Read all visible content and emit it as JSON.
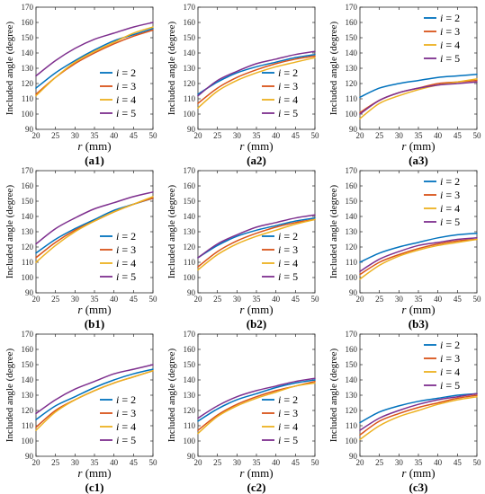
{
  "colors": {
    "s2": "#0072BD",
    "s3": "#D95319",
    "s4": "#EDB120",
    "s5": "#7E2F8E",
    "axis": "#262626"
  },
  "chart_data": [
    {
      "type": "line",
      "panel_label": "a1",
      "xlabel_var": "r",
      "xlabel_unit": " (mm)",
      "ylabel": "Included angle (degree)",
      "xlim": [
        20,
        50
      ],
      "ylim": [
        90,
        170
      ],
      "x_ticks": [
        "20",
        "25",
        "30",
        "35",
        "40",
        "45",
        "50"
      ],
      "y_ticks": [
        "90",
        "100",
        "110",
        "120",
        "130",
        "140",
        "150",
        "160",
        "170"
      ],
      "legend_position": "lower-right",
      "grid": false,
      "x": [
        20,
        25,
        30,
        35,
        40,
        45,
        50
      ],
      "series": [
        {
          "name_var": "i",
          "name_value": " = 2",
          "values": [
            117,
            127,
            135,
            142,
            148,
            152,
            156
          ]
        },
        {
          "name_var": "i",
          "name_value": " = 3",
          "values": [
            113,
            124,
            133,
            140,
            146,
            151,
            155
          ]
        },
        {
          "name_var": "i",
          "name_value": " = 4",
          "values": [
            112,
            124,
            134,
            141,
            147,
            153,
            157
          ]
        },
        {
          "name_var": "i",
          "name_value": " = 5",
          "values": [
            125,
            135,
            143,
            149,
            153,
            157,
            160
          ]
        }
      ]
    },
    {
      "type": "line",
      "panel_label": "a2",
      "xlabel_var": "r",
      "xlabel_unit": " (mm)",
      "ylabel": "Included angle (degree)",
      "xlim": [
        20,
        50
      ],
      "ylim": [
        90,
        170
      ],
      "x_ticks": [
        "20",
        "25",
        "30",
        "35",
        "40",
        "45",
        "50"
      ],
      "y_ticks": [
        "90",
        "100",
        "110",
        "120",
        "130",
        "140",
        "150",
        "160",
        "170"
      ],
      "legend_position": "lower-right",
      "grid": false,
      "x": [
        20,
        25,
        30,
        35,
        40,
        45,
        50
      ],
      "series": [
        {
          "name_var": "i",
          "name_value": " = 2",
          "values": [
            113,
            121,
            127,
            131,
            134,
            137,
            139
          ]
        },
        {
          "name_var": "i",
          "name_value": " = 3",
          "values": [
            107,
            117,
            124,
            129,
            133,
            136,
            138
          ]
        },
        {
          "name_var": "i",
          "name_value": " = 4",
          "values": [
            104,
            115,
            122,
            127,
            131,
            134,
            137
          ]
        },
        {
          "name_var": "i",
          "name_value": " = 5",
          "values": [
            112,
            122,
            128,
            133,
            136,
            139,
            141
          ]
        }
      ]
    },
    {
      "type": "line",
      "panel_label": "a3",
      "xlabel_var": "r",
      "xlabel_unit": " (mm)",
      "ylabel": "Included angle (degree)",
      "xlim": [
        20,
        50
      ],
      "ylim": [
        90,
        170
      ],
      "x_ticks": [
        "20",
        "25",
        "30",
        "35",
        "40",
        "45",
        "50"
      ],
      "y_ticks": [
        "90",
        "100",
        "110",
        "120",
        "130",
        "140",
        "150",
        "160",
        "170"
      ],
      "legend_position": "top-right",
      "grid": false,
      "x": [
        20,
        25,
        30,
        35,
        40,
        45,
        50
      ],
      "series": [
        {
          "name_var": "i",
          "name_value": " = 2",
          "values": [
            111,
            117,
            120,
            122,
            124,
            125,
            126
          ]
        },
        {
          "name_var": "i",
          "name_value": " = 3",
          "values": [
            101,
            109,
            114,
            117,
            120,
            121,
            122
          ]
        },
        {
          "name_var": "i",
          "name_value": " = 4",
          "values": [
            97,
            107,
            112,
            116,
            119,
            121,
            123
          ]
        },
        {
          "name_var": "i",
          "name_value": " = 5",
          "values": [
            100,
            109,
            114,
            117,
            119,
            120,
            121
          ]
        }
      ]
    },
    {
      "type": "line",
      "panel_label": "b1",
      "xlabel_var": "r",
      "xlabel_unit": " (mm)",
      "ylabel": "Included angle (degree)",
      "xlim": [
        20,
        50
      ],
      "ylim": [
        90,
        170
      ],
      "x_ticks": [
        "20",
        "25",
        "30",
        "35",
        "40",
        "45",
        "50"
      ],
      "y_ticks": [
        "90",
        "100",
        "110",
        "120",
        "130",
        "140",
        "150",
        "160",
        "170"
      ],
      "legend_position": "lower-right",
      "grid": false,
      "x": [
        20,
        25,
        30,
        35,
        40,
        45,
        50
      ],
      "series": [
        {
          "name_var": "i",
          "name_value": " = 2",
          "values": [
            116,
            125,
            132,
            138,
            144,
            148,
            152
          ]
        },
        {
          "name_var": "i",
          "name_value": " = 3",
          "values": [
            113,
            123,
            131,
            137,
            143,
            148,
            152
          ]
        },
        {
          "name_var": "i",
          "name_value": " = 4",
          "values": [
            110,
            121,
            130,
            137,
            143,
            148,
            153
          ]
        },
        {
          "name_var": "i",
          "name_value": " = 5",
          "values": [
            122,
            132,
            139,
            145,
            149,
            153,
            156
          ]
        }
      ]
    },
    {
      "type": "line",
      "panel_label": "b2",
      "xlabel_var": "r",
      "xlabel_unit": " (mm)",
      "ylabel": "Included angle (degree)",
      "xlim": [
        20,
        50
      ],
      "ylim": [
        90,
        170
      ],
      "x_ticks": [
        "20",
        "25",
        "30",
        "35",
        "40",
        "45",
        "50"
      ],
      "y_ticks": [
        "90",
        "100",
        "110",
        "120",
        "130",
        "140",
        "150",
        "160",
        "170"
      ],
      "legend_position": "lower-right",
      "grid": false,
      "x": [
        20,
        25,
        30,
        35,
        40,
        45,
        50
      ],
      "series": [
        {
          "name_var": "i",
          "name_value": " = 2",
          "values": [
            113,
            121,
            127,
            131,
            134,
            137,
            139
          ]
        },
        {
          "name_var": "i",
          "name_value": " = 3",
          "values": [
            107,
            117,
            124,
            129,
            133,
            136,
            138
          ]
        },
        {
          "name_var": "i",
          "name_value": " = 4",
          "values": [
            105,
            115,
            122,
            127,
            131,
            135,
            138
          ]
        },
        {
          "name_var": "i",
          "name_value": " = 5",
          "values": [
            113,
            122,
            128,
            133,
            136,
            139,
            141
          ]
        }
      ]
    },
    {
      "type": "line",
      "panel_label": "b3",
      "xlabel_var": "r",
      "xlabel_unit": " (mm)",
      "ylabel": "Included angle (degree)",
      "xlim": [
        20,
        50
      ],
      "ylim": [
        90,
        170
      ],
      "x_ticks": [
        "20",
        "25",
        "30",
        "35",
        "40",
        "45",
        "50"
      ],
      "y_ticks": [
        "90",
        "100",
        "110",
        "120",
        "130",
        "140",
        "150",
        "160",
        "170"
      ],
      "legend_position": "top-right",
      "grid": false,
      "x": [
        20,
        25,
        30,
        35,
        40,
        45,
        50
      ],
      "series": [
        {
          "name_var": "i",
          "name_value": " = 2",
          "values": [
            110,
            116,
            120,
            123,
            126,
            128,
            129
          ]
        },
        {
          "name_var": "i",
          "name_value": " = 3",
          "values": [
            102,
            110,
            115,
            119,
            122,
            124,
            125
          ]
        },
        {
          "name_var": "i",
          "name_value": " = 4",
          "values": [
            99,
            108,
            114,
            118,
            121,
            123,
            125
          ]
        },
        {
          "name_var": "i",
          "name_value": " = 5",
          "values": [
            104,
            112,
            117,
            121,
            123,
            125,
            126
          ]
        }
      ]
    },
    {
      "type": "line",
      "panel_label": "c1",
      "xlabel_var": "r",
      "xlabel_unit": " (mm)",
      "ylabel": "Included angle (degree)",
      "xlim": [
        20,
        50
      ],
      "ylim": [
        90,
        170
      ],
      "x_ticks": [
        "20",
        "25",
        "30",
        "35",
        "40",
        "45",
        "50"
      ],
      "y_ticks": [
        "90",
        "100",
        "110",
        "120",
        "130",
        "140",
        "150",
        "160",
        "170"
      ],
      "legend_position": "lower-right",
      "grid": false,
      "x": [
        20,
        25,
        30,
        35,
        40,
        45,
        50
      ],
      "series": [
        {
          "name_var": "i",
          "name_value": " = 2",
          "values": [
            114,
            123,
            129,
            135,
            140,
            144,
            147
          ]
        },
        {
          "name_var": "i",
          "name_value": " = 3",
          "values": [
            109,
            120,
            127,
            133,
            138,
            142,
            146
          ]
        },
        {
          "name_var": "i",
          "name_value": " = 4",
          "values": [
            107,
            119,
            127,
            133,
            138,
            142,
            146
          ]
        },
        {
          "name_var": "i",
          "name_value": " = 5",
          "values": [
            118,
            127,
            134,
            139,
            144,
            147,
            150
          ]
        }
      ]
    },
    {
      "type": "line",
      "panel_label": "c2",
      "xlabel_var": "r",
      "xlabel_unit": " (mm)",
      "ylabel": "Included angle (degree)",
      "xlim": [
        20,
        50
      ],
      "ylim": [
        90,
        170
      ],
      "x_ticks": [
        "20",
        "25",
        "30",
        "35",
        "40",
        "45",
        "50"
      ],
      "y_ticks": [
        "90",
        "100",
        "110",
        "120",
        "130",
        "140",
        "150",
        "160",
        "170"
      ],
      "legend_position": "lower-right",
      "grid": false,
      "x": [
        20,
        25,
        30,
        35,
        40,
        45,
        50
      ],
      "series": [
        {
          "name_var": "i",
          "name_value": " = 2",
          "values": [
            113,
            121,
            127,
            131,
            135,
            138,
            140
          ]
        },
        {
          "name_var": "i",
          "name_value": " = 3",
          "values": [
            107,
            117,
            124,
            129,
            133,
            136,
            139
          ]
        },
        {
          "name_var": "i",
          "name_value": " = 4",
          "values": [
            105,
            116,
            123,
            128,
            132,
            136,
            138
          ]
        },
        {
          "name_var": "i",
          "name_value": " = 5",
          "values": [
            115,
            123,
            129,
            133,
            136,
            139,
            141
          ]
        }
      ]
    },
    {
      "type": "line",
      "panel_label": "c3",
      "xlabel_var": "r",
      "xlabel_unit": " (mm)",
      "ylabel": "Included angle (degree)",
      "xlim": [
        20,
        50
      ],
      "ylim": [
        90,
        170
      ],
      "x_ticks": [
        "20",
        "25",
        "30",
        "35",
        "40",
        "45",
        "50"
      ],
      "y_ticks": [
        "90",
        "100",
        "110",
        "120",
        "130",
        "140",
        "150",
        "160",
        "170"
      ],
      "legend_position": "top-right",
      "grid": false,
      "x": [
        20,
        25,
        30,
        35,
        40,
        45,
        50
      ],
      "series": [
        {
          "name_var": "i",
          "name_value": " = 2",
          "values": [
            112,
            119,
            123,
            126,
            128,
            130,
            131
          ]
        },
        {
          "name_var": "i",
          "name_value": " = 3",
          "values": [
            104,
            113,
            118,
            122,
            125,
            128,
            130
          ]
        },
        {
          "name_var": "i",
          "name_value": " = 4",
          "values": [
            101,
            110,
            116,
            120,
            124,
            127,
            129
          ]
        },
        {
          "name_var": "i",
          "name_value": " = 5",
          "values": [
            107,
            115,
            120,
            124,
            127,
            129,
            131
          ]
        }
      ]
    }
  ]
}
